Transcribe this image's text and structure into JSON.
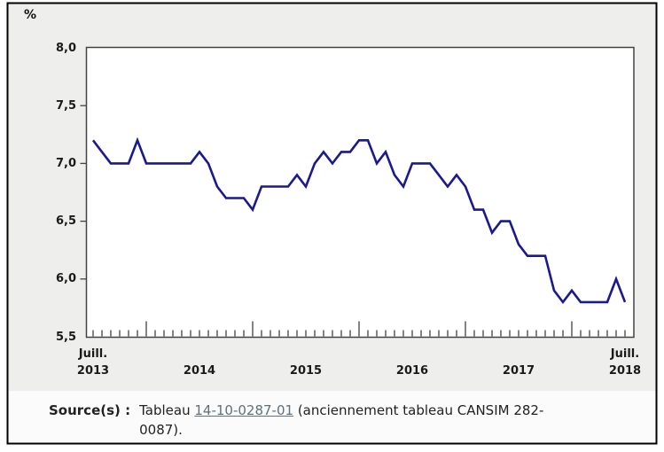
{
  "figure": {
    "y_axis_unit": "%",
    "y_tick_labels": [
      "8,0",
      "7,5",
      "7,0",
      "6,5",
      "6,0",
      "5,5"
    ],
    "x_axis": {
      "first": {
        "month": "Juill.",
        "year": "2013"
      },
      "mid_years": [
        "2014",
        "2015",
        "2016",
        "2017"
      ],
      "last": {
        "month": "Juill.",
        "year": "2018"
      }
    }
  },
  "chart_data": {
    "type": "line",
    "title": "",
    "xlabel": "",
    "ylabel": "%",
    "ylim": [
      5.5,
      8.0
    ],
    "y_tick_step": 0.5,
    "grid": false,
    "legend": "none",
    "frequency": "monthly",
    "x_start_label": "Juill. 2013",
    "x_end_label": "Juill. 2018",
    "n_points": 61,
    "line_color": "#1a1a8e",
    "series": [
      {
        "name": "%",
        "values": [
          7.2,
          7.1,
          7.0,
          7.0,
          7.0,
          7.2,
          7.0,
          7.0,
          7.0,
          7.0,
          7.0,
          7.0,
          7.1,
          7.0,
          6.8,
          6.7,
          6.7,
          6.7,
          6.6,
          6.8,
          6.8,
          6.8,
          6.8,
          6.9,
          6.8,
          7.0,
          7.1,
          7.0,
          7.1,
          7.1,
          7.2,
          7.2,
          7.0,
          7.1,
          6.9,
          6.8,
          7.0,
          7.0,
          7.0,
          6.9,
          6.8,
          6.9,
          6.8,
          6.6,
          6.6,
          6.4,
          6.5,
          6.5,
          6.3,
          6.2,
          6.2,
          6.2,
          5.9,
          5.8,
          5.9,
          5.8,
          5.8,
          5.8,
          5.8,
          6.0,
          5.8
        ]
      }
    ]
  },
  "source": {
    "label": "Source(s) :",
    "before_link": "Tableau ",
    "link_text": "14-10-0287-01",
    "after_link_line1": " (anciennement tableau CANSIM 282-",
    "line2": "0087)."
  },
  "colors": {
    "chart_bg": "#eeefed",
    "plot_bg": "#ffffff",
    "axis": "#424242",
    "border": "#000000",
    "line": "#1a1a8e",
    "link": "#5f6f7c"
  }
}
